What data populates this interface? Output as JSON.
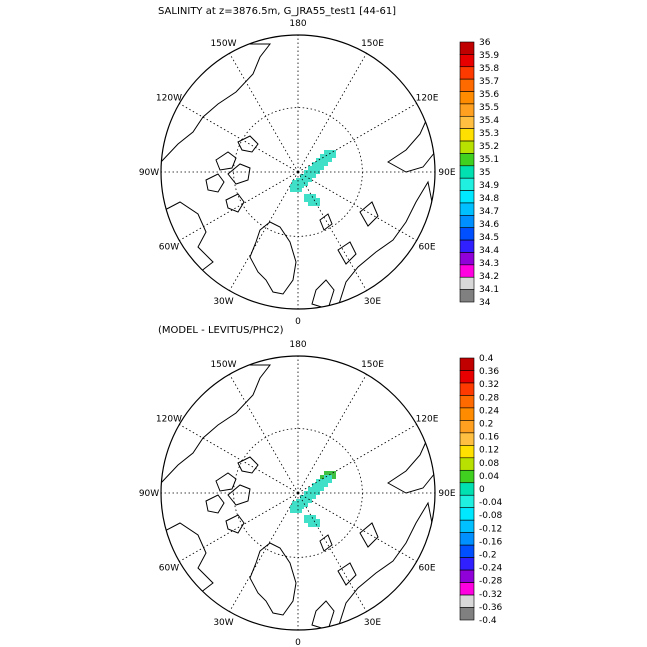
{
  "panels": [
    {
      "title": "SALINITY at z=3876.5m, G_JRA55_test1 [44-61]",
      "lon_labels": [
        "180",
        "150E",
        "120E",
        "90E",
        "60E",
        "30E",
        "0",
        "30W",
        "60W",
        "90W",
        "120W",
        "150W"
      ],
      "colorbar": {
        "labels": [
          "36",
          "35.9",
          "35.8",
          "35.7",
          "35.6",
          "35.5",
          "35.4",
          "35.3",
          "35.2",
          "35.1",
          "35",
          "34.9",
          "34.8",
          "34.7",
          "34.6",
          "34.5",
          "34.4",
          "34.3",
          "34.2",
          "34.1",
          "34"
        ],
        "colors": [
          "#c00000",
          "#e80000",
          "#ff3a00",
          "#ff6a00",
          "#ff8c00",
          "#ffa020",
          "#ffbf40",
          "#ffe000",
          "#b8e000",
          "#40d020",
          "#00e0b0",
          "#20f0e0",
          "#00e8ff",
          "#00c0ff",
          "#0090ff",
          "#0050ff",
          "#3020ff",
          "#9000d8",
          "#ff00e0",
          "#d8d8d8",
          "#808080"
        ]
      },
      "patch_color": "#40e0c8"
    },
    {
      "title": "(MODEL - LEVITUS/PHC2)",
      "lon_labels": [
        "180",
        "150E",
        "120E",
        "90E",
        "60E",
        "30E",
        "0",
        "30W",
        "60W",
        "90W",
        "120W",
        "150W"
      ],
      "colorbar": {
        "labels": [
          "0.4",
          "0.36",
          "0.32",
          "0.28",
          "0.24",
          "0.2",
          "0.16",
          "0.12",
          "0.08",
          "0.04",
          "0",
          "-0.04",
          "-0.08",
          "-0.12",
          "-0.16",
          "-0.2",
          "-0.24",
          "-0.28",
          "-0.32",
          "-0.36",
          "-0.4"
        ],
        "colors": [
          "#c00000",
          "#e80000",
          "#ff3a00",
          "#ff6a00",
          "#ff8c00",
          "#ffa020",
          "#ffbf40",
          "#ffe000",
          "#b8e000",
          "#40d020",
          "#00e0b0",
          "#20f0e0",
          "#00e8ff",
          "#00c0ff",
          "#0090ff",
          "#0050ff",
          "#3020ff",
          "#9000d8",
          "#ff00e0",
          "#d8d8d8",
          "#808080"
        ]
      },
      "patch_color": "#40e0c8",
      "patch_accent_color": "#40c040"
    }
  ]
}
